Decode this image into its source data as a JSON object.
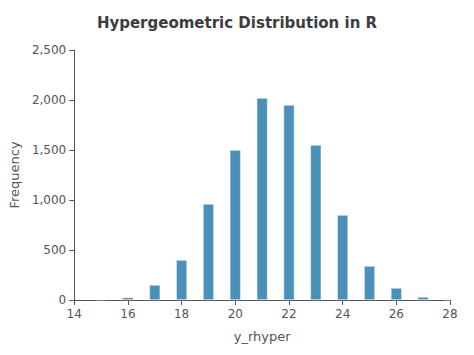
{
  "chart_data": {
    "type": "bar",
    "title": "Hypergeometric Distribution in R",
    "xlabel": "y_rhyper",
    "ylabel": "Frequency",
    "x": [
      15,
      16,
      17,
      18,
      19,
      20,
      21,
      22,
      23,
      24,
      25,
      26,
      27,
      28
    ],
    "values": [
      5,
      25,
      150,
      400,
      960,
      1500,
      2020,
      1950,
      1550,
      850,
      340,
      120,
      30,
      5
    ],
    "color": "#4A90B8",
    "xlim": [
      14,
      28
    ],
    "xticks": [
      14,
      16,
      18,
      20,
      22,
      24,
      26,
      28
    ],
    "ylim": [
      0,
      2500
    ],
    "yticks": [
      0,
      500,
      1000,
      1500,
      2000,
      2500
    ],
    "grid": false
  }
}
